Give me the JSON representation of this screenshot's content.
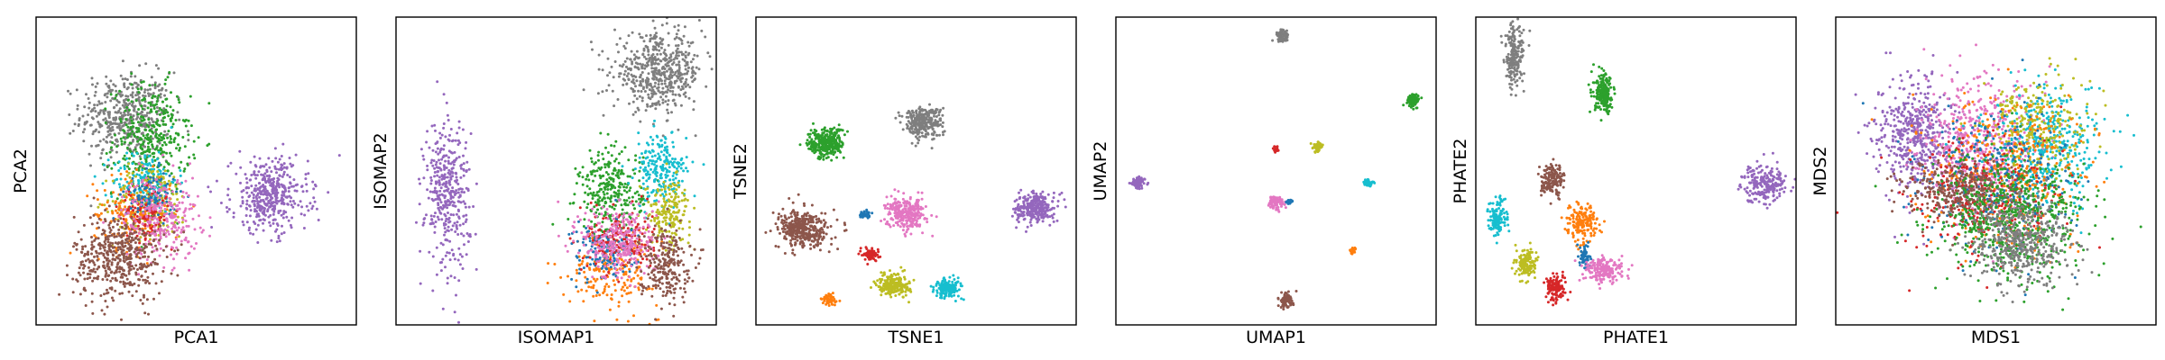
{
  "palette": {
    "blue": "#1f77b4",
    "orange": "#ff7f0e",
    "green": "#2ca02c",
    "red": "#d62728",
    "purple": "#9467bd",
    "brown": "#8c564b",
    "pink": "#e377c2",
    "gray": "#7f7f7f",
    "olive": "#bcbd22",
    "cyan": "#17becf"
  },
  "chart_data": [
    {
      "type": "scatter",
      "xlabel": "PCA1",
      "ylabel": "PCA2",
      "ticks": "none",
      "xlim": [
        0,
        1
      ],
      "ylim": [
        0,
        1
      ],
      "clusters": [
        {
          "color": "gray",
          "cx": 0.28,
          "cy": 0.68,
          "sx": 0.07,
          "sy": 0.07,
          "n": 460
        },
        {
          "color": "green",
          "cx": 0.36,
          "cy": 0.6,
          "sx": 0.06,
          "sy": 0.09,
          "n": 360
        },
        {
          "color": "cyan",
          "cx": 0.34,
          "cy": 0.47,
          "sx": 0.05,
          "sy": 0.05,
          "n": 160
        },
        {
          "color": "olive",
          "cx": 0.36,
          "cy": 0.4,
          "sx": 0.06,
          "sy": 0.06,
          "n": 200
        },
        {
          "color": "orange",
          "cx": 0.3,
          "cy": 0.36,
          "sx": 0.06,
          "sy": 0.06,
          "n": 180
        },
        {
          "color": "red",
          "cx": 0.34,
          "cy": 0.36,
          "sx": 0.04,
          "sy": 0.04,
          "n": 110
        },
        {
          "color": "blue",
          "cx": 0.36,
          "cy": 0.42,
          "sx": 0.04,
          "sy": 0.04,
          "n": 90
        },
        {
          "color": "pink",
          "cx": 0.39,
          "cy": 0.35,
          "sx": 0.06,
          "sy": 0.07,
          "n": 260
        },
        {
          "color": "brown",
          "cx": 0.26,
          "cy": 0.22,
          "sx": 0.07,
          "sy": 0.07,
          "n": 480
        },
        {
          "color": "purple",
          "cx": 0.73,
          "cy": 0.42,
          "sx": 0.06,
          "sy": 0.06,
          "n": 420
        }
      ]
    },
    {
      "type": "scatter",
      "xlabel": "ISOMAP1",
      "ylabel": "ISOMAP2",
      "ticks": "none",
      "xlim": [
        0,
        1
      ],
      "ylim": [
        0,
        1
      ],
      "clusters": [
        {
          "color": "gray",
          "cx": 0.82,
          "cy": 0.82,
          "sx": 0.07,
          "sy": 0.06,
          "n": 520
        },
        {
          "color": "purple",
          "cx": 0.16,
          "cy": 0.43,
          "sx": 0.035,
          "sy": 0.12,
          "n": 380
        },
        {
          "color": "green",
          "cx": 0.67,
          "cy": 0.43,
          "sx": 0.05,
          "sy": 0.07,
          "n": 300
        },
        {
          "color": "cyan",
          "cx": 0.83,
          "cy": 0.5,
          "sx": 0.04,
          "sy": 0.06,
          "n": 220
        },
        {
          "color": "olive",
          "cx": 0.85,
          "cy": 0.37,
          "sx": 0.035,
          "sy": 0.05,
          "n": 180
        },
        {
          "color": "orange",
          "cx": 0.68,
          "cy": 0.18,
          "sx": 0.07,
          "sy": 0.06,
          "n": 200
        },
        {
          "color": "blue",
          "cx": 0.65,
          "cy": 0.24,
          "sx": 0.05,
          "sy": 0.05,
          "n": 150
        },
        {
          "color": "red",
          "cx": 0.7,
          "cy": 0.28,
          "sx": 0.05,
          "sy": 0.05,
          "n": 160
        },
        {
          "color": "pink",
          "cx": 0.7,
          "cy": 0.27,
          "sx": 0.06,
          "sy": 0.06,
          "n": 300
        },
        {
          "color": "brown",
          "cx": 0.84,
          "cy": 0.2,
          "sx": 0.04,
          "sy": 0.06,
          "n": 240
        }
      ]
    },
    {
      "type": "scatter",
      "xlabel": "TSNE1",
      "ylabel": "TSNE2",
      "ticks": "none",
      "xlim": [
        0,
        1
      ],
      "ylim": [
        0,
        1
      ],
      "clusters": [
        {
          "color": "gray",
          "cx": 0.52,
          "cy": 0.66,
          "sx": 0.03,
          "sy": 0.025,
          "n": 300
        },
        {
          "color": "green",
          "cx": 0.22,
          "cy": 0.59,
          "sx": 0.028,
          "sy": 0.025,
          "n": 300
        },
        {
          "color": "brown",
          "cx": 0.15,
          "cy": 0.31,
          "sx": 0.04,
          "sy": 0.03,
          "n": 380
        },
        {
          "color": "pink",
          "cx": 0.47,
          "cy": 0.36,
          "sx": 0.03,
          "sy": 0.025,
          "n": 280
        },
        {
          "color": "purple",
          "cx": 0.87,
          "cy": 0.38,
          "sx": 0.03,
          "sy": 0.025,
          "n": 280
        },
        {
          "color": "blue",
          "cx": 0.34,
          "cy": 0.36,
          "sx": 0.008,
          "sy": 0.006,
          "n": 40
        },
        {
          "color": "red",
          "cx": 0.36,
          "cy": 0.23,
          "sx": 0.012,
          "sy": 0.01,
          "n": 80
        },
        {
          "color": "olive",
          "cx": 0.43,
          "cy": 0.13,
          "sx": 0.025,
          "sy": 0.018,
          "n": 220
        },
        {
          "color": "cyan",
          "cx": 0.6,
          "cy": 0.12,
          "sx": 0.02,
          "sy": 0.015,
          "n": 180
        },
        {
          "color": "orange",
          "cx": 0.23,
          "cy": 0.08,
          "sx": 0.012,
          "sy": 0.01,
          "n": 60
        }
      ]
    },
    {
      "type": "scatter",
      "xlabel": "UMAP1",
      "ylabel": "UMAP2",
      "ticks": "none",
      "xlim": [
        0,
        1
      ],
      "ylim": [
        0,
        1
      ],
      "clusters": [
        {
          "color": "gray",
          "cx": 0.52,
          "cy": 0.94,
          "sx": 0.01,
          "sy": 0.01,
          "n": 80
        },
        {
          "color": "green",
          "cx": 0.93,
          "cy": 0.73,
          "sx": 0.01,
          "sy": 0.01,
          "n": 80
        },
        {
          "color": "purple",
          "cx": 0.07,
          "cy": 0.46,
          "sx": 0.01,
          "sy": 0.01,
          "n": 80
        },
        {
          "color": "red",
          "cx": 0.5,
          "cy": 0.57,
          "sx": 0.004,
          "sy": 0.005,
          "n": 20
        },
        {
          "color": "olive",
          "cx": 0.63,
          "cy": 0.58,
          "sx": 0.008,
          "sy": 0.008,
          "n": 50
        },
        {
          "color": "cyan",
          "cx": 0.79,
          "cy": 0.46,
          "sx": 0.008,
          "sy": 0.007,
          "n": 45
        },
        {
          "color": "pink",
          "cx": 0.5,
          "cy": 0.4,
          "sx": 0.012,
          "sy": 0.011,
          "n": 80
        },
        {
          "color": "blue",
          "cx": 0.54,
          "cy": 0.4,
          "sx": 0.006,
          "sy": 0.004,
          "n": 25
        },
        {
          "color": "orange",
          "cx": 0.74,
          "cy": 0.24,
          "sx": 0.005,
          "sy": 0.005,
          "n": 25
        },
        {
          "color": "brown",
          "cx": 0.53,
          "cy": 0.08,
          "sx": 0.012,
          "sy": 0.012,
          "n": 80
        }
      ]
    },
    {
      "type": "scatter",
      "xlabel": "PHATE1",
      "ylabel": "PHATE2",
      "ticks": "none",
      "xlim": [
        0,
        1
      ],
      "ylim": [
        0,
        1
      ],
      "clusters": [
        {
          "color": "gray",
          "cx": 0.12,
          "cy": 0.87,
          "sx": 0.015,
          "sy": 0.05,
          "n": 200
        },
        {
          "color": "green",
          "cx": 0.4,
          "cy": 0.75,
          "sx": 0.015,
          "sy": 0.03,
          "n": 220
        },
        {
          "color": "brown",
          "cx": 0.24,
          "cy": 0.47,
          "sx": 0.018,
          "sy": 0.025,
          "n": 160
        },
        {
          "color": "purple",
          "cx": 0.9,
          "cy": 0.46,
          "sx": 0.035,
          "sy": 0.03,
          "n": 220
        },
        {
          "color": "cyan",
          "cx": 0.07,
          "cy": 0.35,
          "sx": 0.015,
          "sy": 0.03,
          "n": 140
        },
        {
          "color": "orange",
          "cx": 0.33,
          "cy": 0.33,
          "sx": 0.025,
          "sy": 0.03,
          "n": 180
        },
        {
          "color": "olive",
          "cx": 0.16,
          "cy": 0.2,
          "sx": 0.015,
          "sy": 0.025,
          "n": 140
        },
        {
          "color": "blue",
          "cx": 0.34,
          "cy": 0.22,
          "sx": 0.008,
          "sy": 0.02,
          "n": 60
        },
        {
          "color": "pink",
          "cx": 0.4,
          "cy": 0.18,
          "sx": 0.03,
          "sy": 0.02,
          "n": 200
        },
        {
          "color": "red",
          "cx": 0.25,
          "cy": 0.12,
          "sx": 0.015,
          "sy": 0.02,
          "n": 140
        }
      ]
    },
    {
      "type": "scatter",
      "xlabel": "MDS1",
      "ylabel": "MDS2",
      "ticks": "none",
      "xlim": [
        0,
        1
      ],
      "ylim": [
        0,
        1
      ],
      "clusters": [
        {
          "color": "purple",
          "cx": 0.25,
          "cy": 0.62,
          "sx": 0.06,
          "sy": 0.09,
          "n": 480
        },
        {
          "color": "pink",
          "cx": 0.45,
          "cy": 0.58,
          "sx": 0.09,
          "sy": 0.11,
          "n": 520
        },
        {
          "color": "cyan",
          "cx": 0.66,
          "cy": 0.58,
          "sx": 0.09,
          "sy": 0.09,
          "n": 420
        },
        {
          "color": "olive",
          "cx": 0.62,
          "cy": 0.65,
          "sx": 0.08,
          "sy": 0.08,
          "n": 260
        },
        {
          "color": "orange",
          "cx": 0.55,
          "cy": 0.5,
          "sx": 0.12,
          "sy": 0.12,
          "n": 380
        },
        {
          "color": "blue",
          "cx": 0.5,
          "cy": 0.47,
          "sx": 0.12,
          "sy": 0.12,
          "n": 300
        },
        {
          "color": "red",
          "cx": 0.45,
          "cy": 0.4,
          "sx": 0.12,
          "sy": 0.1,
          "n": 300
        },
        {
          "color": "brown",
          "cx": 0.4,
          "cy": 0.43,
          "sx": 0.09,
          "sy": 0.05,
          "n": 360
        },
        {
          "color": "green",
          "cx": 0.55,
          "cy": 0.35,
          "sx": 0.12,
          "sy": 0.1,
          "n": 620
        },
        {
          "color": "gray",
          "cx": 0.58,
          "cy": 0.27,
          "sx": 0.08,
          "sy": 0.07,
          "n": 480
        }
      ]
    }
  ]
}
